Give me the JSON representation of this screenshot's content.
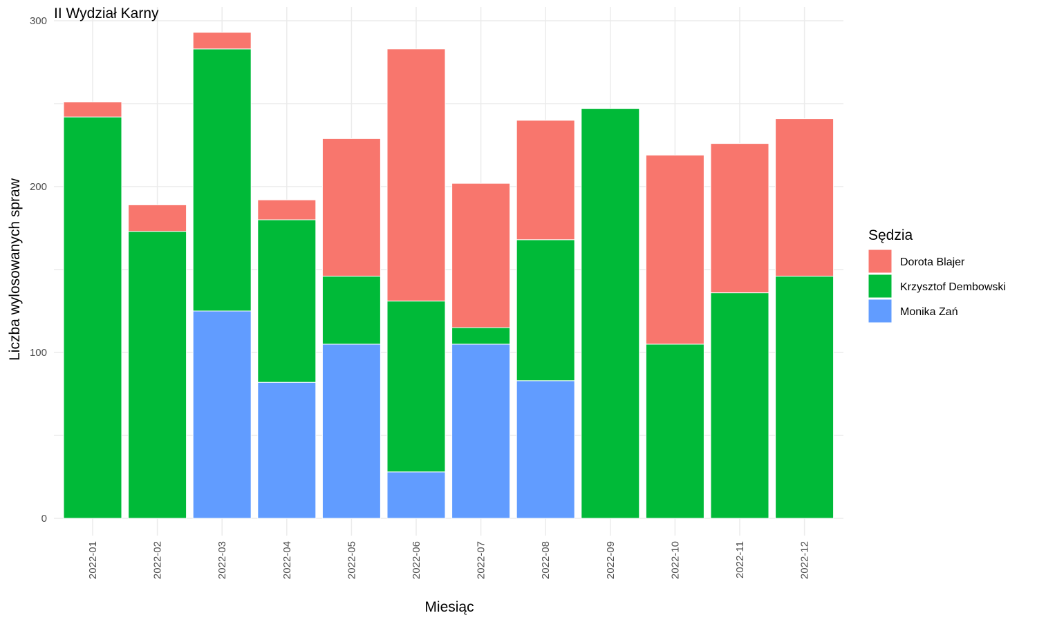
{
  "chart_data": {
    "type": "bar",
    "stacked": true,
    "title": "II Wydział Karny",
    "xlabel": "Miesiąc",
    "ylabel": "Liczba wylosowanych spraw",
    "ylim": [
      0,
      300
    ],
    "yticks": [
      0,
      100,
      200,
      300
    ],
    "grid": true,
    "legend": {
      "title": "Sędzia",
      "position": "right"
    },
    "categories": [
      "2022-01",
      "2022-02",
      "2022-03",
      "2022-04",
      "2022-05",
      "2022-06",
      "2022-07",
      "2022-08",
      "2022-09",
      "2022-10",
      "2022-11",
      "2022-12"
    ],
    "series": [
      {
        "name": "Monika Zań",
        "color": "#619CFF",
        "values": [
          0,
          0,
          125,
          82,
          105,
          28,
          105,
          83,
          0,
          0,
          0,
          0
        ]
      },
      {
        "name": "Krzysztof Dembowski",
        "color": "#00BA38",
        "values": [
          242,
          173,
          158,
          98,
          41,
          103,
          10,
          85,
          247,
          105,
          136,
          146
        ]
      },
      {
        "name": "Dorota Blajer",
        "color": "#F8766D",
        "values": [
          9,
          16,
          10,
          12,
          83,
          152,
          87,
          72,
          0,
          114,
          90,
          95
        ]
      }
    ],
    "legend_order": [
      "Dorota Blajer",
      "Krzysztof Dembowski",
      "Monika Zań"
    ]
  }
}
